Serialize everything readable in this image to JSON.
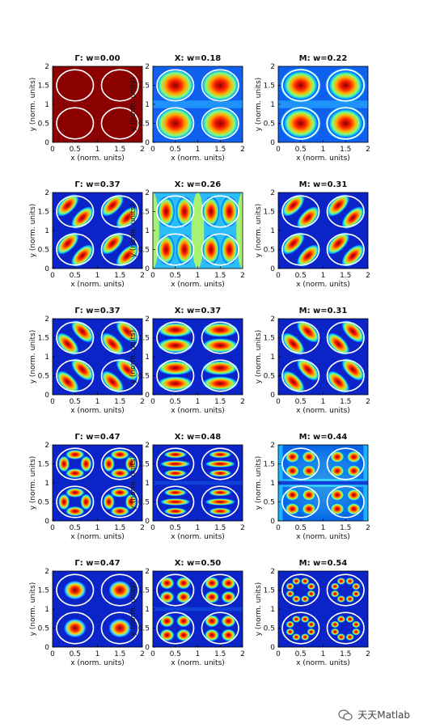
{
  "figure": {
    "panels": [
      {
        "title": "Γ: w=0.00",
        "pattern": "uniform"
      },
      {
        "title": "X: w=0.18",
        "pattern": "center"
      },
      {
        "title": "M: w=0.22",
        "pattern": "center-halo"
      },
      {
        "title": "Γ: w=0.37",
        "pattern": "dipole-diag-a"
      },
      {
        "title": "X: w=0.26",
        "pattern": "dipole-x"
      },
      {
        "title": "M: w=0.31",
        "pattern": "dipole-diag-a"
      },
      {
        "title": "Γ: w=0.37",
        "pattern": "dipole-diag-b"
      },
      {
        "title": "X: w=0.37",
        "pattern": "dipole-y"
      },
      {
        "title": "M: w=0.31",
        "pattern": "dipole-diag-b"
      },
      {
        "title": "Γ: w=0.47",
        "pattern": "quad-diag"
      },
      {
        "title": "X: w=0.48",
        "pattern": "bars-y"
      },
      {
        "title": "M: w=0.44",
        "pattern": "quad-axis"
      },
      {
        "title": "Γ: w=0.47",
        "pattern": "center-small"
      },
      {
        "title": "X: w=0.50",
        "pattern": "quad-axis"
      },
      {
        "title": "M: w=0.54",
        "pattern": "octo"
      }
    ],
    "xlabel": "x (norm. units)",
    "ylabel": "y (norm. units)",
    "xticks": [
      "0",
      "0.5",
      "1",
      "1.5",
      "2"
    ],
    "yticks": [
      "0",
      "0.5",
      "1",
      "1.5",
      "2"
    ]
  },
  "chart_data": {
    "type": "heatmap",
    "rows": 5,
    "cols": 3,
    "xlim": [
      0,
      2
    ],
    "ylim": [
      0,
      2
    ],
    "colormap": "jet",
    "circle_color": "#ffffff",
    "circle_centers": [
      [
        0.5,
        0.5
      ],
      [
        1.5,
        0.5
      ],
      [
        0.5,
        1.5
      ],
      [
        1.5,
        1.5
      ]
    ]
  },
  "watermark": {
    "text": "天天Matlab"
  }
}
